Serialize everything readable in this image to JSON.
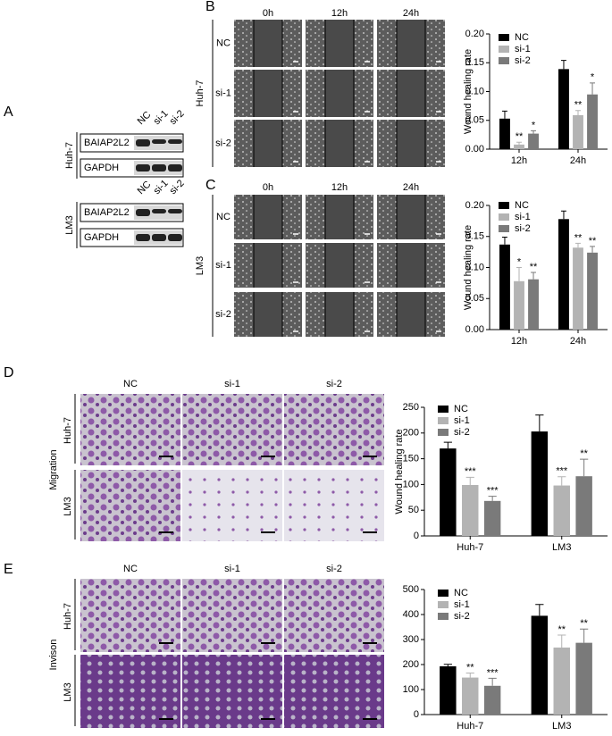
{
  "figure": {
    "panel_labels": [
      "A",
      "B",
      "C",
      "D",
      "E"
    ],
    "blot": [
      {
        "cell_line": "Huh-7",
        "columns": [
          "NC",
          "si-1",
          "si-2"
        ],
        "rows": [
          "BAIAP2L2",
          "GAPDH"
        ]
      },
      {
        "cell_line": "LM3",
        "columns": [
          "NC",
          "si-1",
          "si-2"
        ],
        "rows": [
          "BAIAP2L2",
          "GAPDH"
        ]
      }
    ],
    "scratch": [
      {
        "cell_line": "Huh-7",
        "times": [
          "0h",
          "12h",
          "24h"
        ],
        "rows": [
          "NC",
          "si-1",
          "si-2"
        ]
      },
      {
        "cell_line": "LM3",
        "times": [
          "0h",
          "12h",
          "24h"
        ],
        "rows": [
          "NC",
          "si-1",
          "si-2"
        ]
      }
    ],
    "transwell": [
      {
        "assay": "Migration",
        "columns": [
          "NC",
          "si-1",
          "si-2"
        ],
        "rows": [
          "Huh-7",
          "LM3"
        ]
      },
      {
        "assay": "Invison",
        "columns": [
          "NC",
          "si-1",
          "si-2"
        ],
        "rows": [
          "Huh-7",
          "LM3"
        ]
      }
    ]
  },
  "chart_data": [
    {
      "type": "bar",
      "ylabel": "Wound healing rate",
      "categories": [
        "12h",
        "24h"
      ],
      "ylim": [
        0,
        0.2
      ],
      "yticks": [
        {
          "value": 0,
          "label": "0.00"
        },
        {
          "value": 0.05,
          "label": "0.05"
        },
        {
          "value": 0.1,
          "label": "0.10"
        },
        {
          "value": 0.15,
          "label": "0.15"
        },
        {
          "value": 0.2,
          "label": "0.20"
        }
      ],
      "series": [
        {
          "name": "NC",
          "color": "#000000",
          "values": [
            0.053,
            0.139
          ],
          "errors": [
            0.013,
            0.015
          ]
        },
        {
          "name": "si-1",
          "color": "#b3b3b3",
          "values": [
            0.008,
            0.059
          ],
          "errors": [
            0.004,
            0.008
          ],
          "significance": [
            "**",
            "**"
          ]
        },
        {
          "name": "si-2",
          "color": "#7a7a7a",
          "values": [
            0.027,
            0.095
          ],
          "errors": [
            0.005,
            0.02
          ],
          "significance": [
            "*",
            "*"
          ]
        }
      ]
    },
    {
      "type": "bar",
      "ylabel": "Wound healing rate",
      "categories": [
        "12h",
        "24h"
      ],
      "ylim": [
        0,
        0.2
      ],
      "yticks": [
        {
          "value": 0,
          "label": "0.00"
        },
        {
          "value": 0.05,
          "label": "0.05"
        },
        {
          "value": 0.1,
          "label": "0.10"
        },
        {
          "value": 0.15,
          "label": "0.15"
        },
        {
          "value": 0.2,
          "label": "0.20"
        }
      ],
      "series": [
        {
          "name": "NC",
          "color": "#000000",
          "values": [
            0.137,
            0.178
          ],
          "errors": [
            0.012,
            0.013
          ]
        },
        {
          "name": "si-1",
          "color": "#b3b3b3",
          "values": [
            0.078,
            0.132
          ],
          "errors": [
            0.022,
            0.007
          ],
          "significance": [
            "*",
            "**"
          ]
        },
        {
          "name": "si-2",
          "color": "#7a7a7a",
          "values": [
            0.081,
            0.124
          ],
          "errors": [
            0.011,
            0.01
          ],
          "significance": [
            "**",
            "**"
          ]
        }
      ]
    },
    {
      "type": "bar",
      "ylabel": "Wound healing rate",
      "categories": [
        "Huh-7",
        "LM3"
      ],
      "ylim": [
        0,
        250
      ],
      "yticks": [
        0,
        50,
        100,
        150,
        200,
        250
      ],
      "series": [
        {
          "name": "NC",
          "color": "#000000",
          "values": [
            170,
            203
          ],
          "errors": [
            12,
            32
          ]
        },
        {
          "name": "si-1",
          "color": "#b3b3b3",
          "values": [
            99,
            98
          ],
          "errors": [
            15,
            17
          ],
          "significance": [
            "***",
            "***"
          ]
        },
        {
          "name": "si-2",
          "color": "#7a7a7a",
          "values": [
            68,
            116
          ],
          "errors": [
            9,
            33
          ],
          "significance": [
            "***",
            "**"
          ]
        }
      ]
    },
    {
      "type": "bar",
      "categories": [
        "Huh-7",
        "LM3"
      ],
      "ylim": [
        0,
        500
      ],
      "yticks": [
        0,
        100,
        200,
        300,
        400,
        500
      ],
      "series": [
        {
          "name": "NC",
          "color": "#000000",
          "values": [
            193,
            395
          ],
          "errors": [
            8,
            45
          ]
        },
        {
          "name": "si-1",
          "color": "#b3b3b3",
          "values": [
            148,
            268
          ],
          "errors": [
            18,
            50
          ],
          "significance": [
            "**",
            "**"
          ]
        },
        {
          "name": "si-2",
          "color": "#7a7a7a",
          "values": [
            115,
            287
          ],
          "errors": [
            30,
            55
          ],
          "significance": [
            "***",
            "**"
          ]
        }
      ]
    }
  ]
}
